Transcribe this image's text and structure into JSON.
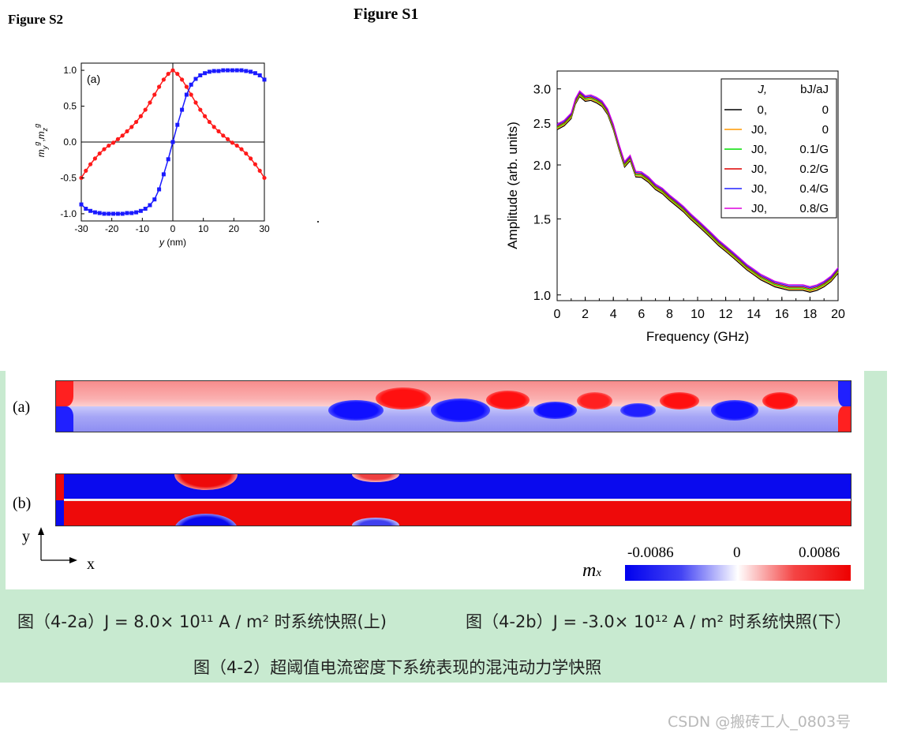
{
  "header": {
    "figure_s2_label": "Figure S2",
    "figure_s1_label": "Figure S1"
  },
  "colors": {
    "red": "#ff1a1a",
    "blue": "#1a1aff",
    "panel_green": "#c8ead0",
    "mx_blue": "#0000ee",
    "mx_red": "#ee0000"
  },
  "chart_data": [
    {
      "id": "figure-s2-a",
      "type": "scatter",
      "panel_label": "(a)",
      "xlabel": "y (nm)",
      "ylabel": "m_y^g, m_z^g",
      "xlim": [
        -30,
        30
      ],
      "ylim": [
        -1.1,
        1.1
      ],
      "xticks": [
        "-30",
        "-20",
        "-10",
        "0",
        "10",
        "20",
        "30"
      ],
      "yticks": [
        "-1.0",
        "-0.5",
        "0.0",
        "0.5",
        "1.0"
      ],
      "series": [
        {
          "color": "#ff1a1a",
          "marker": "circle",
          "x": [
            -30,
            -28.5,
            -27,
            -25.5,
            -24,
            -22.5,
            -21,
            -19.5,
            -18,
            -16.5,
            -15,
            -13.5,
            -12,
            -10.5,
            -9,
            -7.5,
            -6,
            -4.5,
            -3,
            -1.5,
            0,
            1.5,
            3,
            4.5,
            6,
            7.5,
            9,
            10.5,
            12,
            13.5,
            15,
            16.5,
            18,
            19.5,
            21,
            22.5,
            24,
            25.5,
            27,
            28.5,
            30
          ],
          "values": [
            -0.5,
            -0.4,
            -0.31,
            -0.23,
            -0.16,
            -0.1,
            -0.05,
            -0.01,
            0.04,
            0.09,
            0.15,
            0.21,
            0.28,
            0.36,
            0.45,
            0.55,
            0.66,
            0.77,
            0.87,
            0.95,
            1.0,
            0.95,
            0.87,
            0.77,
            0.66,
            0.55,
            0.45,
            0.36,
            0.28,
            0.21,
            0.15,
            0.09,
            0.04,
            -0.01,
            -0.05,
            -0.1,
            -0.16,
            -0.23,
            -0.31,
            -0.4,
            -0.5
          ]
        },
        {
          "color": "#1a1aff",
          "marker": "square",
          "x": [
            -30,
            -28.5,
            -27,
            -25.5,
            -24,
            -22.5,
            -21,
            -19.5,
            -18,
            -16.5,
            -15,
            -13.5,
            -12,
            -10.5,
            -9,
            -7.5,
            -6,
            -4.5,
            -3,
            -1.5,
            0,
            1.5,
            3,
            4.5,
            6,
            7.5,
            9,
            10.5,
            12,
            13.5,
            15,
            16.5,
            18,
            19.5,
            21,
            22.5,
            24,
            25.5,
            27,
            28.5,
            30
          ],
          "values": [
            -0.87,
            -0.93,
            -0.96,
            -0.98,
            -0.99,
            -1.0,
            -1.0,
            -1.0,
            -1.0,
            -1.0,
            -0.99,
            -0.99,
            -0.98,
            -0.96,
            -0.93,
            -0.88,
            -0.8,
            -0.66,
            -0.45,
            -0.24,
            0.0,
            0.24,
            0.45,
            0.66,
            0.8,
            0.88,
            0.93,
            0.96,
            0.98,
            0.99,
            0.99,
            1.0,
            1.0,
            1.0,
            1.0,
            1.0,
            0.99,
            0.98,
            0.96,
            0.93,
            0.87
          ]
        }
      ]
    },
    {
      "id": "figure-s1",
      "type": "line",
      "xlabel": "Frequency (GHz)",
      "ylabel": "Amplitude (arb. units)",
      "xlim": [
        0,
        20
      ],
      "ylim": [
        0.97,
        3.3
      ],
      "yscale": "log",
      "grid": false,
      "legend_position": "top-right",
      "xticks": [
        "0",
        "2",
        "4",
        "6",
        "8",
        "10",
        "12",
        "14",
        "16",
        "18",
        "20"
      ],
      "yticks": [
        "1.0",
        "1.5",
        "2.0",
        "2.5",
        "3.0"
      ],
      "legend_header": [
        "J,",
        "bJ/aJ"
      ],
      "legend": [
        {
          "j": "0,",
          "ratio": "0",
          "color": "#000000"
        },
        {
          "j": "J0,",
          "ratio": "0",
          "color": "#ff9900"
        },
        {
          "j": "J0,",
          "ratio": "0.1/G",
          "color": "#00dd00"
        },
        {
          "j": "J0,",
          "ratio": "0.2/G",
          "color": "#dd0000"
        },
        {
          "j": "J0,",
          "ratio": "0.4/G",
          "color": "#2222ff"
        },
        {
          "j": "J0,",
          "ratio": "0.8/G",
          "color": "#dd00dd"
        }
      ],
      "x": [
        0,
        0.5,
        1,
        1.3,
        1.6,
        2,
        2.4,
        2.8,
        3.2,
        3.6,
        4,
        4.4,
        4.8,
        5.2,
        5.6,
        6,
        6.5,
        7,
        7.5,
        8,
        8.5,
        9,
        9.5,
        10,
        10.5,
        11,
        11.5,
        12,
        12.5,
        13,
        13.5,
        14,
        14.5,
        15,
        15.5,
        16,
        16.5,
        17,
        17.5,
        18,
        18.5,
        19,
        19.5,
        20
      ],
      "values": [
        2.45,
        2.5,
        2.6,
        2.9,
        3.05,
        2.85,
        2.75,
        2.65,
        2.6,
        2.55,
        2.45,
        2.3,
        2.15,
        2.0,
        1.95,
        1.9,
        1.85,
        1.78,
        1.74,
        1.68,
        1.63,
        1.58,
        1.52,
        1.47,
        1.42,
        1.37,
        1.32,
        1.28,
        1.24,
        1.2,
        1.16,
        1.13,
        1.1,
        1.08,
        1.06,
        1.05,
        1.04,
        1.04,
        1.04,
        1.03,
        1.04,
        1.06,
        1.09,
        1.14
      ]
    }
  ],
  "snapshot": {
    "label_a": "(a)",
    "label_b": "(b)",
    "axis_y": "y",
    "axis_x": "x",
    "colorbar_min": "-0.0086",
    "colorbar_mid": "0",
    "colorbar_max": "0.0086",
    "colorbar_label": "m",
    "colorbar_label_sub": "x"
  },
  "captions": {
    "line1_a": "图（4-2a）J = 8.0× 10¹¹ A / m² 时系统快照(上)",
    "line1_b": "图（4-2b）J = -3.0× 10¹² A / m² 时系统快照(下）",
    "line2": "图（4-2）超阈值电流密度下系统表现的混沌动力学快照"
  },
  "watermark": "CSDN @搬砖工人_0803号"
}
